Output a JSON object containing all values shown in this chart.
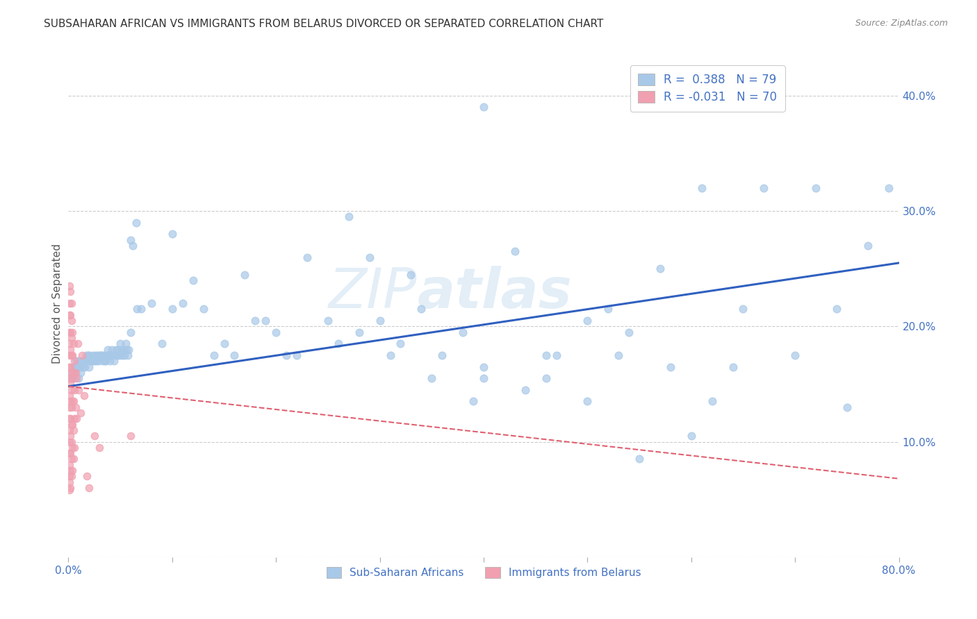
{
  "title": "SUBSAHARAN AFRICAN VS IMMIGRANTS FROM BELARUS DIVORCED OR SEPARATED CORRELATION CHART",
  "source": "Source: ZipAtlas.com",
  "ylabel": "Divorced or Separated",
  "xlim": [
    0.0,
    0.8
  ],
  "ylim": [
    0.0,
    0.44
  ],
  "xticks": [
    0.0,
    0.1,
    0.2,
    0.3,
    0.4,
    0.5,
    0.6,
    0.7,
    0.8
  ],
  "xticklabels": [
    "0.0%",
    "",
    "",
    "",
    "",
    "",
    "",
    "",
    "80.0%"
  ],
  "yticks": [
    0.0,
    0.1,
    0.2,
    0.3,
    0.4
  ],
  "yticklabels_right": [
    "",
    "10.0%",
    "20.0%",
    "30.0%",
    "40.0%"
  ],
  "blue_color": "#A8C8E8",
  "pink_color": "#F0A0B0",
  "blue_line_color": "#3060C0",
  "pink_line_color": "#E06070",
  "blue_scatter": [
    [
      0.002,
      0.155
    ],
    [
      0.003,
      0.16
    ],
    [
      0.004,
      0.155
    ],
    [
      0.005,
      0.165
    ],
    [
      0.006,
      0.16
    ],
    [
      0.006,
      0.155
    ],
    [
      0.007,
      0.165
    ],
    [
      0.008,
      0.17
    ],
    [
      0.009,
      0.165
    ],
    [
      0.01,
      0.155
    ],
    [
      0.01,
      0.17
    ],
    [
      0.011,
      0.165
    ],
    [
      0.012,
      0.16
    ],
    [
      0.013,
      0.17
    ],
    [
      0.014,
      0.165
    ],
    [
      0.015,
      0.17
    ],
    [
      0.016,
      0.165
    ],
    [
      0.017,
      0.175
    ],
    [
      0.018,
      0.17
    ],
    [
      0.019,
      0.175
    ],
    [
      0.02,
      0.165
    ],
    [
      0.02,
      0.175
    ],
    [
      0.021,
      0.17
    ],
    [
      0.022,
      0.17
    ],
    [
      0.023,
      0.175
    ],
    [
      0.024,
      0.17
    ],
    [
      0.025,
      0.17
    ],
    [
      0.026,
      0.175
    ],
    [
      0.027,
      0.17
    ],
    [
      0.028,
      0.175
    ],
    [
      0.029,
      0.17
    ],
    [
      0.03,
      0.175
    ],
    [
      0.031,
      0.175
    ],
    [
      0.032,
      0.175
    ],
    [
      0.033,
      0.17
    ],
    [
      0.034,
      0.175
    ],
    [
      0.035,
      0.17
    ],
    [
      0.036,
      0.17
    ],
    [
      0.037,
      0.175
    ],
    [
      0.038,
      0.18
    ],
    [
      0.039,
      0.175
    ],
    [
      0.04,
      0.17
    ],
    [
      0.041,
      0.175
    ],
    [
      0.042,
      0.18
    ],
    [
      0.043,
      0.175
    ],
    [
      0.044,
      0.17
    ],
    [
      0.045,
      0.175
    ],
    [
      0.046,
      0.18
    ],
    [
      0.047,
      0.175
    ],
    [
      0.048,
      0.18
    ],
    [
      0.049,
      0.175
    ],
    [
      0.05,
      0.185
    ],
    [
      0.051,
      0.18
    ],
    [
      0.052,
      0.175
    ],
    [
      0.053,
      0.18
    ],
    [
      0.054,
      0.175
    ],
    [
      0.055,
      0.185
    ],
    [
      0.056,
      0.18
    ],
    [
      0.057,
      0.175
    ],
    [
      0.058,
      0.18
    ],
    [
      0.06,
      0.275
    ],
    [
      0.06,
      0.195
    ],
    [
      0.062,
      0.27
    ],
    [
      0.065,
      0.29
    ],
    [
      0.066,
      0.215
    ],
    [
      0.07,
      0.215
    ],
    [
      0.08,
      0.22
    ],
    [
      0.09,
      0.185
    ],
    [
      0.1,
      0.215
    ],
    [
      0.1,
      0.28
    ],
    [
      0.11,
      0.22
    ],
    [
      0.12,
      0.24
    ],
    [
      0.13,
      0.215
    ],
    [
      0.14,
      0.175
    ],
    [
      0.15,
      0.185
    ],
    [
      0.16,
      0.175
    ],
    [
      0.17,
      0.245
    ],
    [
      0.18,
      0.205
    ],
    [
      0.19,
      0.205
    ],
    [
      0.2,
      0.195
    ],
    [
      0.21,
      0.175
    ],
    [
      0.22,
      0.175
    ],
    [
      0.23,
      0.26
    ],
    [
      0.25,
      0.205
    ],
    [
      0.26,
      0.185
    ],
    [
      0.27,
      0.295
    ],
    [
      0.28,
      0.195
    ],
    [
      0.29,
      0.26
    ],
    [
      0.3,
      0.205
    ],
    [
      0.31,
      0.175
    ],
    [
      0.32,
      0.185
    ],
    [
      0.33,
      0.245
    ],
    [
      0.34,
      0.215
    ],
    [
      0.35,
      0.155
    ],
    [
      0.36,
      0.175
    ],
    [
      0.38,
      0.195
    ],
    [
      0.39,
      0.135
    ],
    [
      0.4,
      0.155
    ],
    [
      0.4,
      0.165
    ],
    [
      0.43,
      0.265
    ],
    [
      0.44,
      0.145
    ],
    [
      0.46,
      0.155
    ],
    [
      0.46,
      0.175
    ],
    [
      0.47,
      0.175
    ],
    [
      0.5,
      0.205
    ],
    [
      0.5,
      0.135
    ],
    [
      0.52,
      0.215
    ],
    [
      0.53,
      0.175
    ],
    [
      0.54,
      0.195
    ],
    [
      0.55,
      0.085
    ],
    [
      0.57,
      0.25
    ],
    [
      0.58,
      0.165
    ],
    [
      0.6,
      0.105
    ],
    [
      0.61,
      0.32
    ],
    [
      0.62,
      0.135
    ],
    [
      0.64,
      0.165
    ],
    [
      0.65,
      0.215
    ],
    [
      0.67,
      0.32
    ],
    [
      0.7,
      0.175
    ],
    [
      0.72,
      0.32
    ],
    [
      0.74,
      0.215
    ],
    [
      0.75,
      0.13
    ],
    [
      0.77,
      0.27
    ],
    [
      0.79,
      0.32
    ],
    [
      0.4,
      0.39
    ]
  ],
  "pink_scatter": [
    [
      0.001,
      0.235
    ],
    [
      0.001,
      0.22
    ],
    [
      0.001,
      0.21
    ],
    [
      0.001,
      0.195
    ],
    [
      0.001,
      0.185
    ],
    [
      0.001,
      0.175
    ],
    [
      0.001,
      0.165
    ],
    [
      0.001,
      0.155
    ],
    [
      0.001,
      0.14
    ],
    [
      0.001,
      0.13
    ],
    [
      0.001,
      0.12
    ],
    [
      0.001,
      0.11
    ],
    [
      0.001,
      0.1
    ],
    [
      0.001,
      0.09
    ],
    [
      0.001,
      0.08
    ],
    [
      0.001,
      0.07
    ],
    [
      0.001,
      0.065
    ],
    [
      0.001,
      0.058
    ],
    [
      0.002,
      0.23
    ],
    [
      0.002,
      0.21
    ],
    [
      0.002,
      0.195
    ],
    [
      0.002,
      0.18
    ],
    [
      0.002,
      0.165
    ],
    [
      0.002,
      0.15
    ],
    [
      0.002,
      0.135
    ],
    [
      0.002,
      0.12
    ],
    [
      0.002,
      0.105
    ],
    [
      0.002,
      0.09
    ],
    [
      0.002,
      0.075
    ],
    [
      0.002,
      0.06
    ],
    [
      0.003,
      0.22
    ],
    [
      0.003,
      0.205
    ],
    [
      0.003,
      0.19
    ],
    [
      0.003,
      0.175
    ],
    [
      0.003,
      0.16
    ],
    [
      0.003,
      0.145
    ],
    [
      0.003,
      0.13
    ],
    [
      0.003,
      0.115
    ],
    [
      0.003,
      0.1
    ],
    [
      0.003,
      0.085
    ],
    [
      0.003,
      0.07
    ],
    [
      0.004,
      0.195
    ],
    [
      0.004,
      0.175
    ],
    [
      0.004,
      0.155
    ],
    [
      0.004,
      0.135
    ],
    [
      0.004,
      0.115
    ],
    [
      0.004,
      0.095
    ],
    [
      0.004,
      0.075
    ],
    [
      0.005,
      0.185
    ],
    [
      0.005,
      0.16
    ],
    [
      0.005,
      0.135
    ],
    [
      0.005,
      0.11
    ],
    [
      0.005,
      0.085
    ],
    [
      0.006,
      0.17
    ],
    [
      0.006,
      0.145
    ],
    [
      0.006,
      0.12
    ],
    [
      0.006,
      0.095
    ],
    [
      0.007,
      0.16
    ],
    [
      0.007,
      0.13
    ],
    [
      0.008,
      0.155
    ],
    [
      0.008,
      0.12
    ],
    [
      0.009,
      0.185
    ],
    [
      0.01,
      0.145
    ],
    [
      0.012,
      0.125
    ],
    [
      0.013,
      0.175
    ],
    [
      0.015,
      0.14
    ],
    [
      0.018,
      0.07
    ],
    [
      0.02,
      0.06
    ],
    [
      0.025,
      0.105
    ],
    [
      0.03,
      0.095
    ],
    [
      0.06,
      0.105
    ]
  ],
  "blue_trendline": [
    [
      0.0,
      0.148
    ],
    [
      0.8,
      0.255
    ]
  ],
  "pink_trendline": [
    [
      0.0,
      0.148
    ],
    [
      0.8,
      0.068
    ]
  ],
  "watermark_line1": "ZIP",
  "watermark_line2": "atlas",
  "background_color": "#ffffff",
  "grid_color": "#cccccc"
}
